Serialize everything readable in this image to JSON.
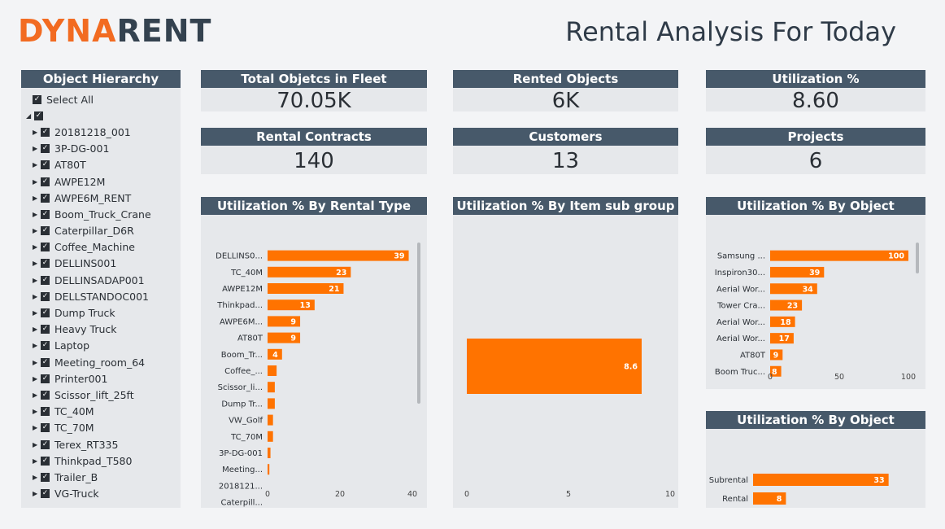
{
  "logo": {
    "part1": "DYNA",
    "part2": "RENT"
  },
  "page_title": "Rental Analysis For Today",
  "hierarchy": {
    "title": "Object Hierarchy",
    "select_all": "Select All",
    "items": [
      "20181218_001",
      "3P-DG-001",
      "AT80T",
      "AWPE12M",
      "AWPE6M_RENT",
      "Boom_Truck_Crane",
      "Caterpillar_D6R",
      "Coffee_Machine",
      "DELLINS001",
      "DELLINSADAP001",
      "DELLSTANDOC001",
      "Dump Truck",
      "Heavy Truck",
      "Laptop",
      "Meeting_room_64",
      "Printer001",
      "Scissor_lift_25ft",
      "TC_40M",
      "TC_70M",
      "Terex_RT335",
      "Thinkpad_T580",
      "Trailer_B",
      "VG-Truck"
    ]
  },
  "kpis": [
    {
      "label": "Total Objetcs in Fleet",
      "value": "70.05K"
    },
    {
      "label": "Rented Objects",
      "value": "6K"
    },
    {
      "label": "Utilization %",
      "value": "8.60"
    },
    {
      "label": "Rental Contracts",
      "value": "140"
    },
    {
      "label": "Customers",
      "value": "13"
    },
    {
      "label": "Projects",
      "value": "6"
    }
  ],
  "chart_data": [
    {
      "type": "bar",
      "orientation": "horizontal",
      "title": "Utilization % By Rental Type",
      "categories": [
        "DELLINS0...",
        "TC_40M",
        "AWPE12M",
        "Thinkpad...",
        "AWPE6M...",
        "AT80T",
        "Boom_Tr...",
        "Coffee_...",
        "Scissor_li...",
        "Dump Tr...",
        "VW_Golf",
        "TC_70M",
        "3P-DG-001",
        "Meeting...",
        "2018121...",
        "Caterpill..."
      ],
      "values": [
        39,
        23,
        21,
        13,
        9,
        9,
        4,
        2.5,
        2,
        2,
        1.5,
        1.5,
        0.8,
        0.5,
        0,
        0
      ],
      "data_labels": [
        "39",
        "23",
        "21",
        "13",
        "9",
        "9",
        "4",
        "",
        "",
        "",
        "",
        "",
        "",
        "",
        "",
        ""
      ],
      "xticks": [
        "0",
        "20",
        "40"
      ],
      "xlim": [
        0,
        40
      ],
      "color": "#ff7300"
    },
    {
      "type": "bar",
      "orientation": "horizontal",
      "title": "Utilization % By  Item sub group",
      "categories": [
        ""
      ],
      "values": [
        8.6
      ],
      "data_labels": [
        "8.6"
      ],
      "xticks": [
        "0",
        "5",
        "10"
      ],
      "xlim": [
        0,
        10
      ],
      "color": "#ff7300"
    },
    {
      "type": "bar",
      "orientation": "horizontal",
      "title": "Utilization % By Object",
      "categories": [
        "Samsung ...",
        "Inspiron30...",
        "Aerial Wor...",
        "Tower Cra...",
        "Aerial Wor...",
        "Aerial Wor...",
        "AT80T",
        "Boom Truc..."
      ],
      "values": [
        100,
        39,
        34,
        23,
        18,
        17,
        9,
        8
      ],
      "data_labels": [
        "100",
        "39",
        "34",
        "23",
        "18",
        "17",
        "9",
        "8"
      ],
      "xticks": [
        "0",
        "50",
        "100"
      ],
      "xlim": [
        0,
        100
      ],
      "color": "#ff7300"
    },
    {
      "type": "bar",
      "orientation": "horizontal",
      "title": "Utilization % By Object",
      "categories": [
        "Subrental",
        "Rental"
      ],
      "values": [
        33,
        8
      ],
      "data_labels": [
        "33",
        "8"
      ],
      "xticks": [],
      "xlim": [
        0,
        40
      ],
      "color": "#ff7300"
    }
  ]
}
